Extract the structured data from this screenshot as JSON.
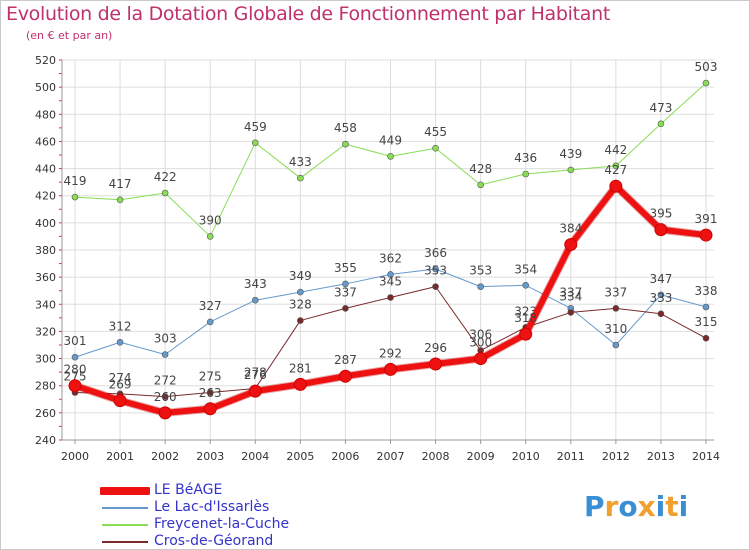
{
  "chart_data": {
    "type": "line",
    "title": "Evolution de la Dotation Globale de Fonctionnement par Habitant",
    "subtitle": "(en € et par an)",
    "x": [
      "2000",
      "2001",
      "2002",
      "2003",
      "2004",
      "2005",
      "2006",
      "2007",
      "2008",
      "2009",
      "2010",
      "2011",
      "2012",
      "2013",
      "2014"
    ],
    "ylim": [
      240,
      520
    ],
    "yticks": [
      240,
      260,
      280,
      300,
      320,
      340,
      360,
      380,
      400,
      420,
      440,
      460,
      480,
      500,
      520
    ],
    "grid": true,
    "series": [
      {
        "name": "Freycenet-la-Cuche",
        "color": "#88dd55",
        "width": 1,
        "values": [
          419,
          417,
          422,
          390,
          459,
          433,
          458,
          449,
          455,
          428,
          436,
          439,
          442,
          473,
          503
        ]
      },
      {
        "name": "Le Lac-d'Issarlès",
        "color": "#6699cc",
        "width": 1,
        "values": [
          301,
          312,
          303,
          327,
          343,
          349,
          355,
          362,
          366,
          353,
          354,
          337,
          310,
          347,
          338
        ]
      },
      {
        "name": "Cros-de-Géorand",
        "color": "#7a2a2a",
        "width": 1,
        "values": [
          275,
          274,
          272,
          275,
          278,
          328,
          337,
          345,
          353,
          306,
          323,
          334,
          337,
          333,
          315
        ]
      },
      {
        "name": "LE BéAGE",
        "color": "#ee1111",
        "width": 6,
        "values": [
          280,
          269,
          260,
          263,
          276,
          281,
          287,
          292,
          296,
          300,
          318,
          384,
          427,
          395,
          391
        ]
      }
    ],
    "legend": [
      "LE BéAGE",
      "Le Lac-d'Issarlès",
      "Freycenet-la-Cuche",
      "Cros-de-Géorand"
    ]
  },
  "logo": {
    "text": "Proxiti"
  }
}
